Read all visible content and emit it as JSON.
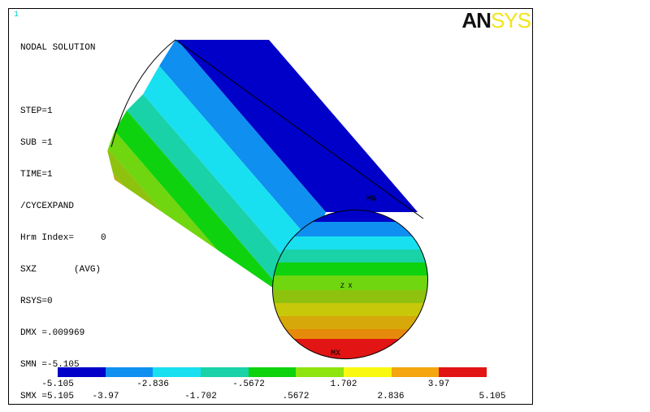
{
  "window_number": "1",
  "brand": {
    "part1": "AN",
    "part2": "SYS"
  },
  "info_lines": [
    "NODAL SOLUTION",
    "",
    "STEP=1",
    "SUB =1",
    "TIME=1",
    "/CYCEXPAND",
    "Hrm Index=     0",
    "SXZ       (AVG)",
    "RSYS=0",
    "DMX =.009969",
    "SMN =-5.105",
    "SMX =5.105"
  ],
  "markers": {
    "min": "MN",
    "max": "MX",
    "axes": "Z X"
  },
  "legend": {
    "colors": [
      "#0000c8",
      "#0f8ff0",
      "#18e0f0",
      "#19d2a8",
      "#0fd20f",
      "#8ee40f",
      "#f8f810",
      "#f3a60d",
      "#e21414"
    ],
    "upper_labels": [
      "-5.105",
      "-2.836",
      "-.5672",
      "1.702",
      "3.97"
    ],
    "lower_labels": [
      "-3.97",
      "-1.702",
      ".5672",
      "2.836",
      "5.105"
    ]
  }
}
